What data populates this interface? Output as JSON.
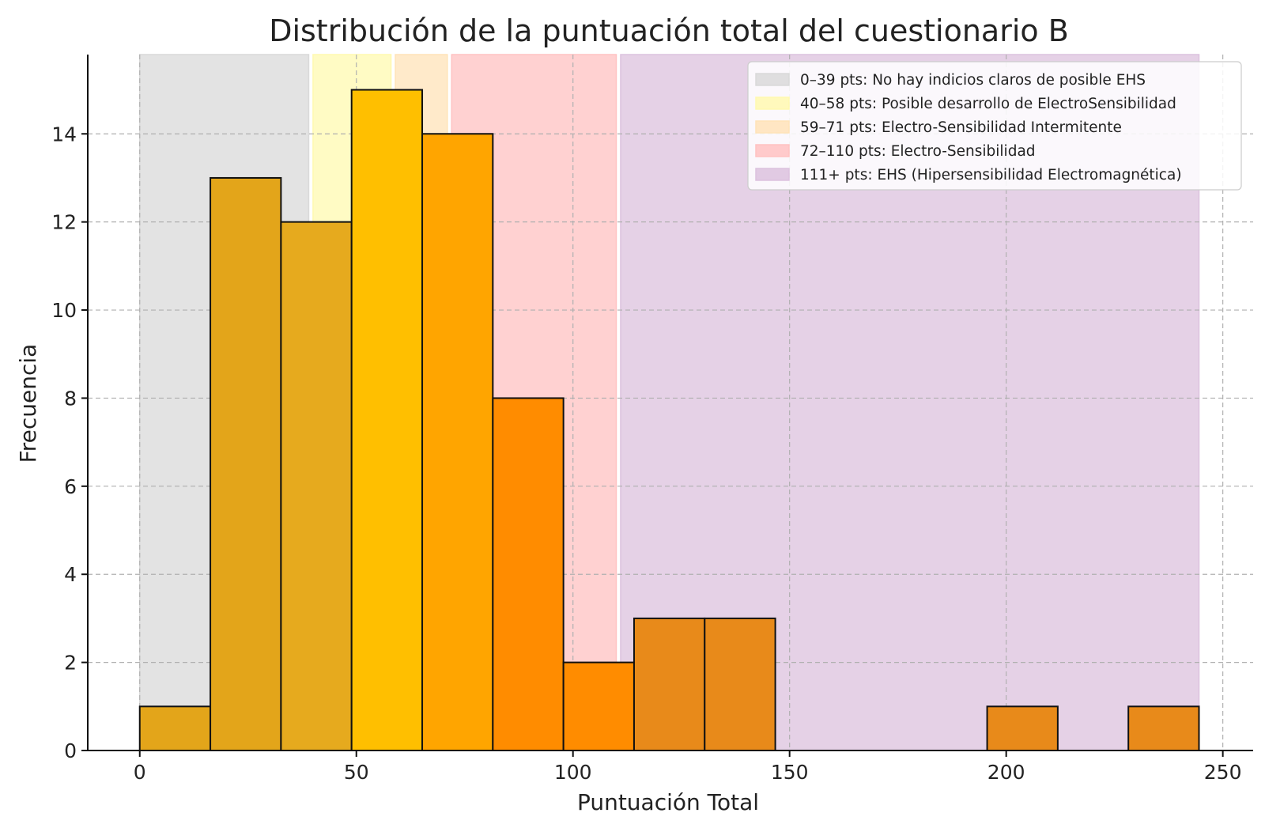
{
  "chart_data": {
    "type": "bar",
    "subtype": "histogram",
    "title": "Distribución de la puntuación total del cuestionario B",
    "xlabel": "Puntuación Total",
    "ylabel": "Frecuencia",
    "xlim": [
      -12,
      257
    ],
    "ylim": [
      0,
      15.8
    ],
    "xticks": [
      0,
      50,
      100,
      150,
      200,
      250
    ],
    "yticks": [
      0,
      2,
      4,
      6,
      8,
      10,
      12,
      14
    ],
    "grid": true,
    "legend_position": "top-right",
    "bins": [
      {
        "x0": 0,
        "x1": 16.3,
        "count": 1,
        "color": "#e3a51a"
      },
      {
        "x0": 16.3,
        "x1": 32.6,
        "count": 13,
        "color": "#e3a51a"
      },
      {
        "x0": 32.6,
        "x1": 48.9,
        "count": 12,
        "color": "#e6aa1e"
      },
      {
        "x0": 48.9,
        "x1": 65.2,
        "count": 15,
        "color": "#ffbf00"
      },
      {
        "x0": 65.2,
        "x1": 81.5,
        "count": 14,
        "color": "#ffa500"
      },
      {
        "x0": 81.5,
        "x1": 97.8,
        "count": 8,
        "color": "#ff8c00"
      },
      {
        "x0": 97.8,
        "x1": 114.1,
        "count": 2,
        "color": "#ff8c00"
      },
      {
        "x0": 114.1,
        "x1": 130.4,
        "count": 3,
        "color": "#e88a1a"
      },
      {
        "x0": 130.4,
        "x1": 146.7,
        "count": 3,
        "color": "#e88a1a"
      },
      {
        "x0": 146.7,
        "x1": 163.0,
        "count": 0,
        "color": "#e88a1a"
      },
      {
        "x0": 163.0,
        "x1": 179.3,
        "count": 0,
        "color": "#e88a1a"
      },
      {
        "x0": 179.3,
        "x1": 195.6,
        "count": 0,
        "color": "#e88a1a"
      },
      {
        "x0": 195.6,
        "x1": 211.9,
        "count": 1,
        "color": "#e88a1a"
      },
      {
        "x0": 211.9,
        "x1": 228.2,
        "count": 0,
        "color": "#e88a1a"
      },
      {
        "x0": 228.2,
        "x1": 244.5,
        "count": 1,
        "color": "#e88a1a"
      }
    ],
    "bands": [
      {
        "x0": 0,
        "x1": 39,
        "color": "#d9d9d9",
        "label": "0–39 pts: No hay indicios claros de posible EHS"
      },
      {
        "x0": 40,
        "x1": 58,
        "color": "#fff9b0",
        "label": "40–58 pts: Posible desarrollo de ElectroSensibilidad"
      },
      {
        "x0": 59,
        "x1": 71,
        "color": "#ffe3b8",
        "label": "59–71 pts: Electro-Sensibilidad Intermitente"
      },
      {
        "x0": 72,
        "x1": 110,
        "color": "#ffc2c2",
        "label": "72–110 pts: Electro-Sensibilidad"
      },
      {
        "x0": 111,
        "x1": 244.5,
        "color": "#dcc2de",
        "label": "111+ pts: EHS (Hipersensibilidad Electromagnética)"
      }
    ]
  }
}
